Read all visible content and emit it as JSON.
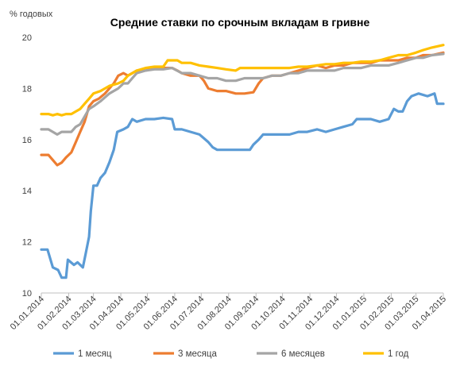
{
  "chart_data": {
    "type": "line",
    "title": "Средние ставки по срочным вкладам в гривне",
    "ylabel": "% годовых",
    "xlabel": "",
    "ylim": [
      10,
      20
    ],
    "yticks": [
      "10",
      "12",
      "14",
      "16",
      "18",
      "20"
    ],
    "xticks": [
      "01.01.2014",
      "01.02.2014",
      "01.03.2014",
      "01.04.2014",
      "01.05.2014",
      "01.06.2014",
      "01.07.2014",
      "01.08.2014",
      "01.09.2014",
      "01.10.2014",
      "01.11.2014",
      "01.12.2014",
      "01.01.2015",
      "01.02.2015",
      "01.03.2015",
      "01.04.2015"
    ],
    "grid": false,
    "legend_position": "bottom",
    "series": [
      {
        "name": "1 месяц",
        "color": "#5b9bd5",
        "points": [
          [
            "01.01.2014",
            11.7
          ],
          [
            "08.01.2014",
            11.7
          ],
          [
            "14.01.2014",
            11.0
          ],
          [
            "20.01.2014",
            10.9
          ],
          [
            "24.01.2014",
            10.6
          ],
          [
            "29.01.2014",
            10.6
          ],
          [
            "31.01.2014",
            11.3
          ],
          [
            "07.02.2014",
            11.1
          ],
          [
            "11.02.2014",
            11.2
          ],
          [
            "17.02.2014",
            11.0
          ],
          [
            "20.02.2014",
            11.5
          ],
          [
            "24.02.2014",
            12.2
          ],
          [
            "26.02.2014",
            13.2
          ],
          [
            "01.03.2014",
            14.2
          ],
          [
            "05.03.2014",
            14.2
          ],
          [
            "09.03.2014",
            14.5
          ],
          [
            "14.03.2014",
            14.7
          ],
          [
            "19.03.2014",
            15.1
          ],
          [
            "24.03.2014",
            15.6
          ],
          [
            "28.03.2014",
            16.3
          ],
          [
            "04.04.2014",
            16.4
          ],
          [
            "09.04.2014",
            16.5
          ],
          [
            "14.04.2014",
            16.8
          ],
          [
            "19.04.2014",
            16.7
          ],
          [
            "29.04.2014",
            16.8
          ],
          [
            "09.05.2014",
            16.8
          ],
          [
            "19.05.2014",
            16.85
          ],
          [
            "29.05.2014",
            16.8
          ],
          [
            "01.06.2014",
            16.4
          ],
          [
            "09.06.2014",
            16.4
          ],
          [
            "19.06.2014",
            16.3
          ],
          [
            "29.06.2014",
            16.2
          ],
          [
            "09.07.2014",
            15.9
          ],
          [
            "14.07.2014",
            15.7
          ],
          [
            "19.07.2014",
            15.6
          ],
          [
            "29.07.2014",
            15.6
          ],
          [
            "09.08.2014",
            15.6
          ],
          [
            "19.08.2014",
            15.6
          ],
          [
            "25.08.2014",
            15.6
          ],
          [
            "29.08.2014",
            15.8
          ],
          [
            "04.09.2014",
            16.0
          ],
          [
            "09.09.2014",
            16.2
          ],
          [
            "19.09.2014",
            16.2
          ],
          [
            "29.09.2014",
            16.2
          ],
          [
            "09.10.2014",
            16.2
          ],
          [
            "19.10.2014",
            16.3
          ],
          [
            "29.10.2014",
            16.3
          ],
          [
            "09.11.2014",
            16.4
          ],
          [
            "19.11.2014",
            16.3
          ],
          [
            "29.11.2014",
            16.4
          ],
          [
            "09.12.2014",
            16.5
          ],
          [
            "19.12.2014",
            16.6
          ],
          [
            "24.12.2014",
            16.8
          ],
          [
            "09.01.2015",
            16.8
          ],
          [
            "19.01.2015",
            16.7
          ],
          [
            "29.01.2015",
            16.8
          ],
          [
            "04.02.2015",
            17.2
          ],
          [
            "09.02.2015",
            17.1
          ],
          [
            "14.02.2015",
            17.1
          ],
          [
            "19.02.2015",
            17.5
          ],
          [
            "24.02.2015",
            17.7
          ],
          [
            "04.03.2015",
            17.8
          ],
          [
            "14.03.2015",
            17.7
          ],
          [
            "22.03.2015",
            17.8
          ],
          [
            "25.03.2015",
            17.4
          ],
          [
            "01.04.2015",
            17.4
          ]
        ]
      },
      {
        "name": "3 месяца",
        "color": "#ed7d31",
        "points": [
          [
            "01.01.2014",
            15.4
          ],
          [
            "09.01.2014",
            15.4
          ],
          [
            "14.01.2014",
            15.2
          ],
          [
            "19.01.2014",
            15.0
          ],
          [
            "24.01.2014",
            15.1
          ],
          [
            "29.01.2014",
            15.3
          ],
          [
            "04.02.2014",
            15.5
          ],
          [
            "09.02.2014",
            15.9
          ],
          [
            "14.02.2014",
            16.3
          ],
          [
            "19.02.2014",
            16.7
          ],
          [
            "24.02.2014",
            17.3
          ],
          [
            "01.03.2014",
            17.5
          ],
          [
            "07.03.2014",
            17.6
          ],
          [
            "14.03.2014",
            17.8
          ],
          [
            "19.03.2014",
            18.0
          ],
          [
            "24.03.2014",
            18.2
          ],
          [
            "29.03.2014",
            18.5
          ],
          [
            "04.04.2014",
            18.6
          ],
          [
            "09.04.2014",
            18.5
          ],
          [
            "14.04.2014",
            18.6
          ],
          [
            "19.04.2014",
            18.7
          ],
          [
            "29.04.2014",
            18.7
          ],
          [
            "09.05.2014",
            18.8
          ],
          [
            "19.05.2014",
            18.8
          ],
          [
            "29.05.2014",
            18.8
          ],
          [
            "04.06.2014",
            18.7
          ],
          [
            "09.06.2014",
            18.6
          ],
          [
            "19.06.2014",
            18.5
          ],
          [
            "29.06.2014",
            18.5
          ],
          [
            "04.07.2014",
            18.3
          ],
          [
            "09.07.2014",
            18.0
          ],
          [
            "19.07.2014",
            17.9
          ],
          [
            "29.07.2014",
            17.9
          ],
          [
            "09.08.2014",
            17.8
          ],
          [
            "19.08.2014",
            17.8
          ],
          [
            "29.08.2014",
            17.85
          ],
          [
            "04.09.2014",
            18.2
          ],
          [
            "09.09.2014",
            18.4
          ],
          [
            "19.09.2014",
            18.5
          ],
          [
            "29.09.2014",
            18.5
          ],
          [
            "09.10.2014",
            18.6
          ],
          [
            "19.10.2014",
            18.7
          ],
          [
            "29.10.2014",
            18.8
          ],
          [
            "09.11.2014",
            18.9
          ],
          [
            "19.11.2014",
            18.8
          ],
          [
            "29.11.2014",
            18.9
          ],
          [
            "09.12.2014",
            18.9
          ],
          [
            "19.12.2014",
            19.0
          ],
          [
            "29.12.2014",
            19.0
          ],
          [
            "09.01.2015",
            19.0
          ],
          [
            "19.01.2015",
            19.1
          ],
          [
            "29.01.2015",
            19.1
          ],
          [
            "09.02.2015",
            19.1
          ],
          [
            "19.02.2015",
            19.2
          ],
          [
            "01.03.2015",
            19.2
          ],
          [
            "09.03.2015",
            19.3
          ],
          [
            "19.03.2015",
            19.3
          ],
          [
            "01.04.2015",
            19.4
          ]
        ]
      },
      {
        "name": "6 месяцев",
        "color": "#a5a5a5",
        "points": [
          [
            "01.01.2014",
            16.4
          ],
          [
            "09.01.2014",
            16.4
          ],
          [
            "14.01.2014",
            16.3
          ],
          [
            "19.01.2014",
            16.2
          ],
          [
            "24.01.2014",
            16.3
          ],
          [
            "29.01.2014",
            16.3
          ],
          [
            "04.02.2014",
            16.3
          ],
          [
            "09.02.2014",
            16.5
          ],
          [
            "14.02.2014",
            16.6
          ],
          [
            "19.02.2014",
            16.9
          ],
          [
            "24.02.2014",
            17.2
          ],
          [
            "01.03.2014",
            17.3
          ],
          [
            "09.03.2014",
            17.5
          ],
          [
            "19.03.2014",
            17.8
          ],
          [
            "29.03.2014",
            18.0
          ],
          [
            "04.04.2014",
            18.2
          ],
          [
            "09.04.2014",
            18.2
          ],
          [
            "14.04.2014",
            18.4
          ],
          [
            "19.04.2014",
            18.6
          ],
          [
            "29.04.2014",
            18.7
          ],
          [
            "09.05.2014",
            18.75
          ],
          [
            "19.05.2014",
            18.75
          ],
          [
            "29.05.2014",
            18.8
          ],
          [
            "09.06.2014",
            18.6
          ],
          [
            "19.06.2014",
            18.6
          ],
          [
            "29.06.2014",
            18.5
          ],
          [
            "09.07.2014",
            18.4
          ],
          [
            "19.07.2014",
            18.4
          ],
          [
            "29.07.2014",
            18.3
          ],
          [
            "09.08.2014",
            18.3
          ],
          [
            "19.08.2014",
            18.4
          ],
          [
            "29.08.2014",
            18.4
          ],
          [
            "09.09.2014",
            18.4
          ],
          [
            "19.09.2014",
            18.5
          ],
          [
            "29.09.2014",
            18.5
          ],
          [
            "09.10.2014",
            18.6
          ],
          [
            "19.10.2014",
            18.6
          ],
          [
            "29.10.2014",
            18.7
          ],
          [
            "09.11.2014",
            18.7
          ],
          [
            "19.11.2014",
            18.7
          ],
          [
            "29.11.2014",
            18.7
          ],
          [
            "09.12.2014",
            18.8
          ],
          [
            "19.12.2014",
            18.8
          ],
          [
            "29.12.2014",
            18.8
          ],
          [
            "09.01.2015",
            18.9
          ],
          [
            "19.01.2015",
            18.9
          ],
          [
            "29.01.2015",
            18.9
          ],
          [
            "09.02.2015",
            19.0
          ],
          [
            "19.02.2015",
            19.1
          ],
          [
            "01.03.2015",
            19.2
          ],
          [
            "09.03.2015",
            19.2
          ],
          [
            "19.03.2015",
            19.3
          ],
          [
            "01.04.2015",
            19.35
          ]
        ]
      },
      {
        "name": "1 год",
        "color": "#ffc000",
        "points": [
          [
            "01.01.2014",
            17.0
          ],
          [
            "09.01.2014",
            17.0
          ],
          [
            "14.01.2014",
            16.95
          ],
          [
            "19.01.2014",
            17.0
          ],
          [
            "24.01.2014",
            16.95
          ],
          [
            "29.01.2014",
            17.0
          ],
          [
            "04.02.2014",
            17.0
          ],
          [
            "09.02.2014",
            17.1
          ],
          [
            "14.02.2014",
            17.2
          ],
          [
            "19.02.2014",
            17.4
          ],
          [
            "24.02.2014",
            17.6
          ],
          [
            "01.03.2014",
            17.8
          ],
          [
            "09.03.2014",
            17.9
          ],
          [
            "19.03.2014",
            18.1
          ],
          [
            "29.03.2014",
            18.2
          ],
          [
            "04.04.2014",
            18.3
          ],
          [
            "09.04.2014",
            18.5
          ],
          [
            "14.04.2014",
            18.6
          ],
          [
            "19.04.2014",
            18.7
          ],
          [
            "29.04.2014",
            18.8
          ],
          [
            "09.05.2014",
            18.85
          ],
          [
            "19.05.2014",
            18.85
          ],
          [
            "24.05.2014",
            19.1
          ],
          [
            "29.05.2014",
            19.1
          ],
          [
            "04.06.2014",
            19.1
          ],
          [
            "09.06.2014",
            19.0
          ],
          [
            "19.06.2014",
            19.0
          ],
          [
            "29.06.2014",
            18.9
          ],
          [
            "09.07.2014",
            18.85
          ],
          [
            "19.07.2014",
            18.8
          ],
          [
            "29.07.2014",
            18.75
          ],
          [
            "09.08.2014",
            18.7
          ],
          [
            "14.08.2014",
            18.8
          ],
          [
            "19.08.2014",
            18.8
          ],
          [
            "29.08.2014",
            18.8
          ],
          [
            "09.09.2014",
            18.8
          ],
          [
            "19.09.2014",
            18.8
          ],
          [
            "29.09.2014",
            18.8
          ],
          [
            "09.10.2014",
            18.8
          ],
          [
            "19.10.2014",
            18.85
          ],
          [
            "29.10.2014",
            18.85
          ],
          [
            "09.11.2014",
            18.9
          ],
          [
            "19.11.2014",
            18.95
          ],
          [
            "29.11.2014",
            18.95
          ],
          [
            "09.12.2014",
            19.0
          ],
          [
            "19.12.2014",
            19.0
          ],
          [
            "29.12.2014",
            19.05
          ],
          [
            "09.01.2015",
            19.05
          ],
          [
            "19.01.2015",
            19.1
          ],
          [
            "29.01.2015",
            19.2
          ],
          [
            "09.02.2015",
            19.3
          ],
          [
            "19.02.2015",
            19.3
          ],
          [
            "01.03.2015",
            19.4
          ],
          [
            "09.03.2015",
            19.5
          ],
          [
            "19.03.2015",
            19.6
          ],
          [
            "01.04.2015",
            19.7
          ]
        ]
      }
    ]
  }
}
